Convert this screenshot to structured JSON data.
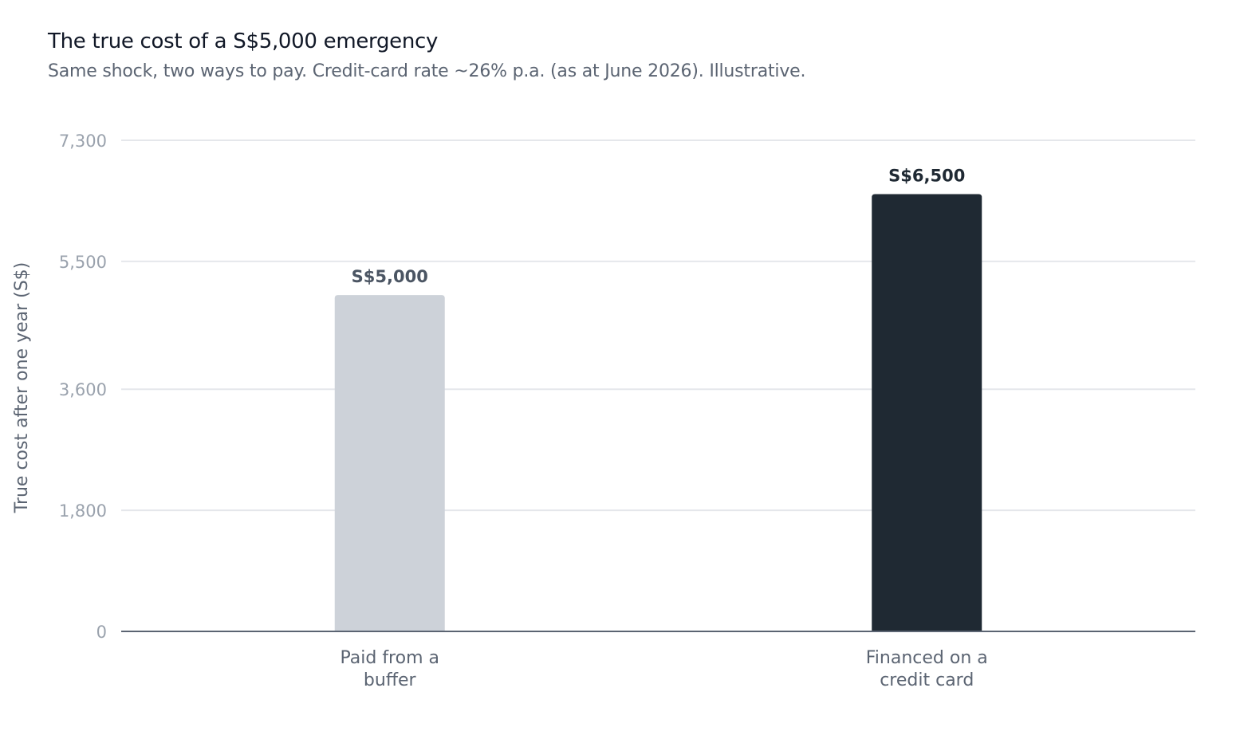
{
  "chart_data": {
    "type": "bar",
    "title": "The true cost of a S$5,000 emergency",
    "subtitle": "Same shock, two ways to pay. Credit-card rate ~26% p.a. (as at June 2026). Illustrative.",
    "ylabel": "True cost after one year (S$)",
    "xlabel": "",
    "ylim": [
      0,
      7300
    ],
    "yticks": [
      0,
      1800,
      3600,
      5500,
      7300
    ],
    "ytick_labels": [
      "0",
      "1,800",
      "3,600",
      "5,500",
      "7,300"
    ],
    "grid": true,
    "categories": [
      {
        "lines": [
          "Paid from a",
          "buffer"
        ]
      },
      {
        "lines": [
          "Financed on a",
          "credit card"
        ]
      }
    ],
    "values": [
      5000,
      6500
    ],
    "value_labels": [
      "S$5,000",
      "S$6,500"
    ],
    "colors": [
      "#cdd2d9",
      "#1f2933"
    ],
    "label_colors": [
      "#4b5563",
      "#1f2933"
    ]
  }
}
